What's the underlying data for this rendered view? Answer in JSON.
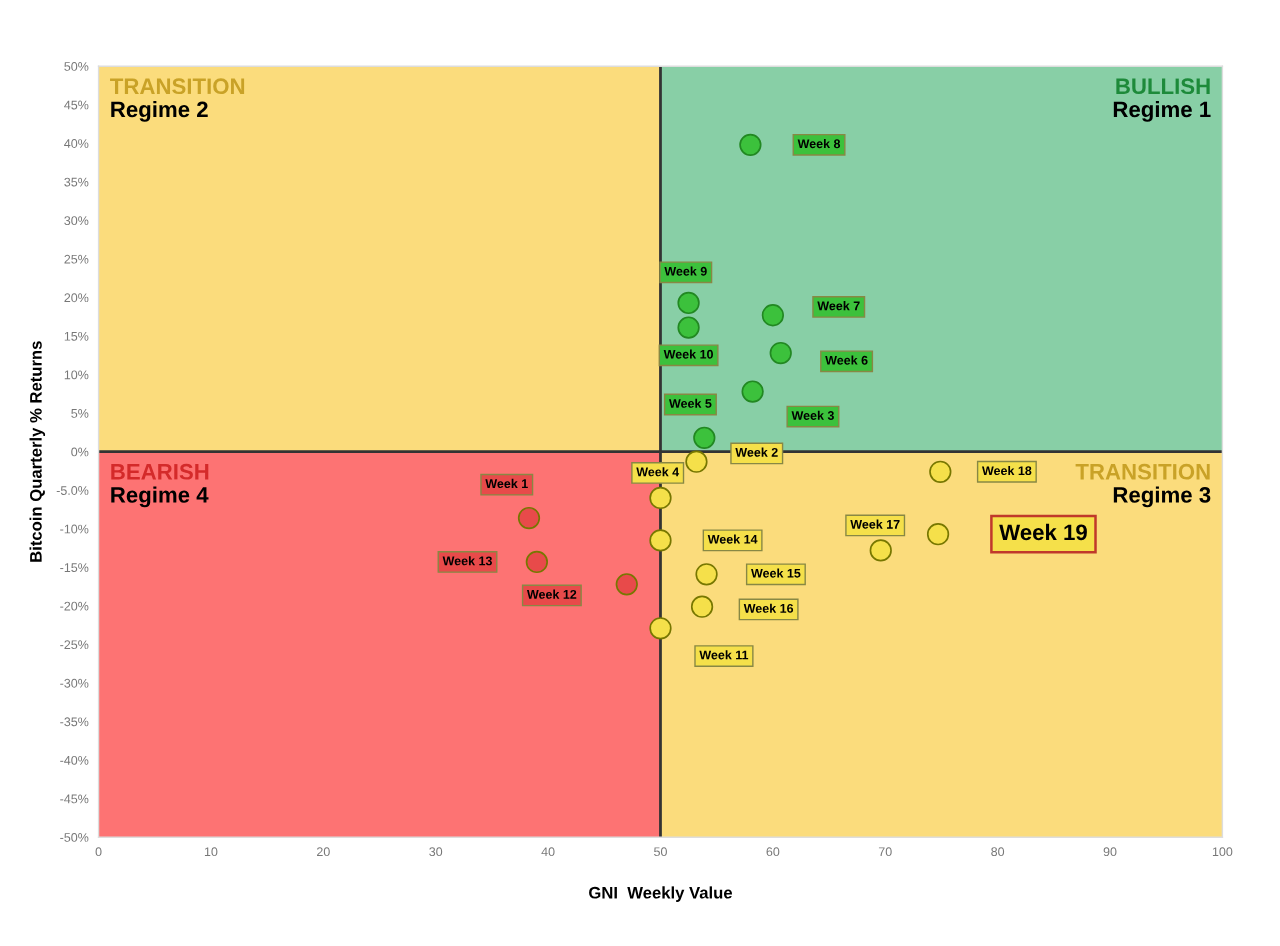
{
  "chart_data": {
    "type": "scatter",
    "xlabel": "GNI  Weekly Value",
    "ylabel": "Bitcoin Quarterly % Returns",
    "xlim": [
      0,
      100
    ],
    "xticks": [
      0,
      10,
      20,
      30,
      40,
      50,
      60,
      70,
      80,
      90,
      100
    ],
    "ylim": [
      -50,
      50
    ],
    "yticks": [
      {
        "value": -50,
        "label": "-50%"
      },
      {
        "value": -45,
        "label": "-45%"
      },
      {
        "value": -40,
        "label": "-40%"
      },
      {
        "value": -35,
        "label": "-35%"
      },
      {
        "value": -30,
        "label": "-30%"
      },
      {
        "value": -25,
        "label": "-25%"
      },
      {
        "value": -20,
        "label": "-20%"
      },
      {
        "value": -15,
        "label": "-15%"
      },
      {
        "value": -10,
        "label": "-10%"
      },
      {
        "value": -5,
        "label": "-5.0%"
      },
      {
        "value": 0,
        "label": "0%"
      },
      {
        "value": 5,
        "label": "5%"
      },
      {
        "value": 10,
        "label": "10%"
      },
      {
        "value": 15,
        "label": "15%"
      },
      {
        "value": 20,
        "label": "20%"
      },
      {
        "value": 25,
        "label": "25%"
      },
      {
        "value": 30,
        "label": "30%"
      },
      {
        "value": 35,
        "label": "35%"
      },
      {
        "value": 40,
        "label": "40%"
      },
      {
        "value": 45,
        "label": "45%"
      },
      {
        "value": 50,
        "label": "50%"
      }
    ],
    "grid": false,
    "legend": false,
    "marker": "circle",
    "ref_lines": [
      {
        "axis": "x",
        "value": 50,
        "color": "#333333"
      },
      {
        "axis": "y",
        "value": 0,
        "color": "#333333"
      }
    ],
    "annotations": [
      "BULLISH",
      "Regime 1",
      "TRANSITION",
      "Regime 2",
      "TRANSITION",
      "Regime 3",
      "BEARISH",
      "Regime 4"
    ],
    "series": [
      {
        "name": "Week 1",
        "color": "#e84a4a",
        "x": [
          38.3
        ],
        "values": [
          -8.6
        ]
      },
      {
        "name": "Week 2",
        "color": "#f5e04a",
        "x": [
          53.2
        ],
        "values": [
          -1.3
        ]
      },
      {
        "name": "Week 3",
        "color": "#3cc13c",
        "x": [
          58.2
        ],
        "values": [
          7.8
        ]
      },
      {
        "name": "Week 4",
        "color": "#f5e04a",
        "x": [
          50.0
        ],
        "values": [
          -6.0
        ]
      },
      {
        "name": "Week 5",
        "color": "#3cc13c",
        "x": [
          53.9
        ],
        "values": [
          1.8
        ]
      },
      {
        "name": "Week 6",
        "color": "#3cc13c",
        "x": [
          60.7
        ],
        "values": [
          12.8
        ]
      },
      {
        "name": "Week 7",
        "color": "#3cc13c",
        "x": [
          60.0
        ],
        "values": [
          17.7
        ]
      },
      {
        "name": "Week 8",
        "color": "#3cc13c",
        "x": [
          58.0
        ],
        "values": [
          39.8
        ]
      },
      {
        "name": "Week 9",
        "color": "#3cc13c",
        "x": [
          52.5
        ],
        "values": [
          19.3
        ]
      },
      {
        "name": "Week 10",
        "color": "#3cc13c",
        "x": [
          52.5
        ],
        "values": [
          16.1
        ]
      },
      {
        "name": "Week 11",
        "color": "#f5e04a",
        "x": [
          50.0
        ],
        "values": [
          -22.9
        ]
      },
      {
        "name": "Week 12",
        "color": "#e84a4a",
        "x": [
          47.0
        ],
        "values": [
          -17.2
        ]
      },
      {
        "name": "Week 13",
        "color": "#e84a4a",
        "x": [
          39.0
        ],
        "values": [
          -14.3
        ]
      },
      {
        "name": "Week 14",
        "color": "#f5e04a",
        "x": [
          50.0
        ],
        "values": [
          -11.5
        ]
      },
      {
        "name": "Week 15",
        "color": "#f5e04a",
        "x": [
          54.1
        ],
        "values": [
          -15.9
        ]
      },
      {
        "name": "Week 16",
        "color": "#f5e04a",
        "x": [
          53.7
        ],
        "values": [
          -20.1
        ]
      },
      {
        "name": "Week 17",
        "color": "#f5e04a",
        "x": [
          69.6
        ],
        "values": [
          -12.8
        ]
      },
      {
        "name": "Week 18",
        "color": "#f5e04a",
        "x": [
          74.9
        ],
        "values": [
          -2.6
        ]
      },
      {
        "name": "Week 19",
        "color": "#f5e04a",
        "x": [
          74.7
        ],
        "values": [
          -10.7
        ]
      }
    ]
  }
}
